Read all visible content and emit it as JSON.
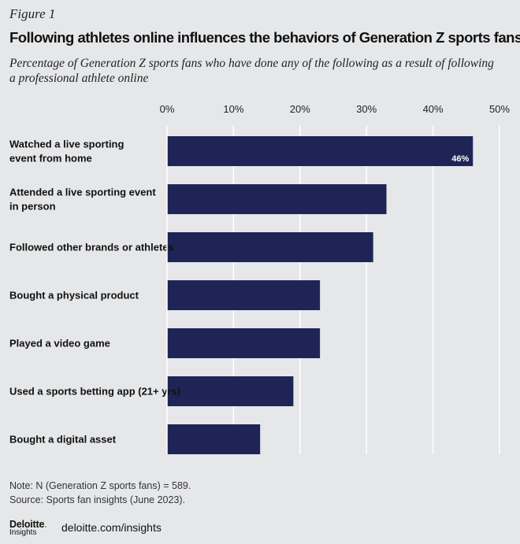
{
  "figure_label": "Figure 1",
  "title": "Following athletes online influences the behaviors of Generation Z sports fans",
  "subtitle": "Percentage of Generation Z sports fans who have done any of the following as a result of following a professional athlete online",
  "note": "Note: N (Generation Z sports fans) = 589.",
  "source": "Source: Sports fan insights (June 2023).",
  "logo": {
    "name": "Deloitte",
    "dot": ".",
    "sub": "Insights"
  },
  "site": "deloitte.com/insights",
  "colors": {
    "bar": "#1e2556",
    "background": "#e6e7e9",
    "gridline": "#ffffff",
    "label_on_bar": "#ffffff"
  },
  "chart_data": {
    "type": "bar",
    "orientation": "horizontal",
    "categories": [
      [
        "Watched a live sporting",
        "event from home"
      ],
      [
        "Attended a live sporting event",
        "in person"
      ],
      [
        "Followed other brands or athletes"
      ],
      [
        "Bought a physical product"
      ],
      [
        "Played a video game"
      ],
      [
        "Used a sports betting app (21+ yrs)"
      ],
      [
        "Bought a digital asset"
      ]
    ],
    "values": [
      46,
      33,
      31,
      23,
      23,
      19,
      14
    ],
    "data_labels": [
      "46%",
      "",
      "",
      "",
      "",
      "",
      ""
    ],
    "xlim": [
      0,
      50
    ],
    "ticks": [
      0,
      10,
      20,
      30,
      40,
      50
    ],
    "tick_labels": [
      "0%",
      "10%",
      "20%",
      "30%",
      "40%",
      "50%"
    ],
    "grid": true
  }
}
